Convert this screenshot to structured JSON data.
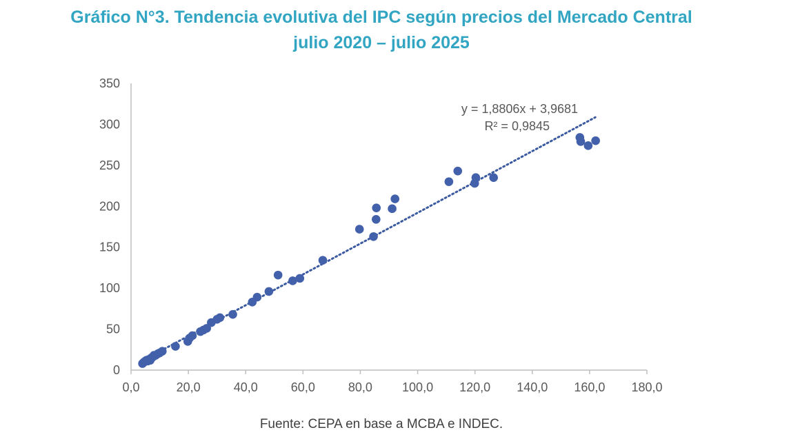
{
  "colors": {
    "title": "#31A5C2",
    "marker": "#4361AA",
    "trendline": "#3B5AA0",
    "axis": "#BFBFBF",
    "text": "#595959"
  },
  "source": "Fuente: CEPA en base a MCBA e INDEC.",
  "chart_data": {
    "type": "scatter",
    "title": [
      "Gráfico N°3. Tendencia evolutiva del IPC según precios del Mercado Central",
      "julio 2020 – julio 2025"
    ],
    "xlabel": "",
    "ylabel": "",
    "xlim": [
      0,
      180
    ],
    "ylim": [
      0,
      350
    ],
    "xticks": [
      "0,0",
      "20,0",
      "40,0",
      "60,0",
      "80,0",
      "100,0",
      "120,0",
      "140,0",
      "160,0",
      "180,0"
    ],
    "yticks": [
      "0",
      "50",
      "100",
      "150",
      "200",
      "250",
      "300",
      "350"
    ],
    "grid": false,
    "points": [
      [
        4.0,
        8
      ],
      [
        4.3,
        9
      ],
      [
        4.6,
        10
      ],
      [
        5.0,
        11
      ],
      [
        5.4,
        12
      ],
      [
        5.8,
        11
      ],
      [
        6.2,
        13
      ],
      [
        6.7,
        12
      ],
      [
        7.1,
        15
      ],
      [
        7.6,
        16
      ],
      [
        8.0,
        18
      ],
      [
        8.6,
        18
      ],
      [
        9.4,
        20
      ],
      [
        10.0,
        21
      ],
      [
        10.9,
        23
      ],
      [
        15.5,
        29
      ],
      [
        19.8,
        35
      ],
      [
        20.4,
        39
      ],
      [
        21.4,
        42
      ],
      [
        24.2,
        47
      ],
      [
        25.3,
        49
      ],
      [
        26.4,
        51
      ],
      [
        28.0,
        58
      ],
      [
        30.0,
        62
      ],
      [
        31.0,
        64
      ],
      [
        35.5,
        68
      ],
      [
        42.3,
        83
      ],
      [
        44.0,
        89
      ],
      [
        48.1,
        96
      ],
      [
        51.3,
        116
      ],
      [
        56.4,
        109
      ],
      [
        58.9,
        112
      ],
      [
        66.9,
        134
      ],
      [
        79.7,
        172
      ],
      [
        84.6,
        163
      ],
      [
        85.5,
        184
      ],
      [
        85.6,
        198
      ],
      [
        91.1,
        197
      ],
      [
        92.1,
        209
      ],
      [
        110.9,
        230
      ],
      [
        114.0,
        243
      ],
      [
        119.9,
        228
      ],
      [
        120.3,
        235
      ],
      [
        126.5,
        235
      ],
      [
        156.6,
        284
      ],
      [
        156.9,
        279
      ],
      [
        159.5,
        274
      ],
      [
        162.1,
        280
      ]
    ],
    "trendline": {
      "type": "linear",
      "slope": 1.8806,
      "intercept": 3.9681,
      "x_range": [
        4,
        162
      ],
      "equation": "y = 1,8806x + 3,9681",
      "r2": "R² = 0,9845"
    }
  }
}
